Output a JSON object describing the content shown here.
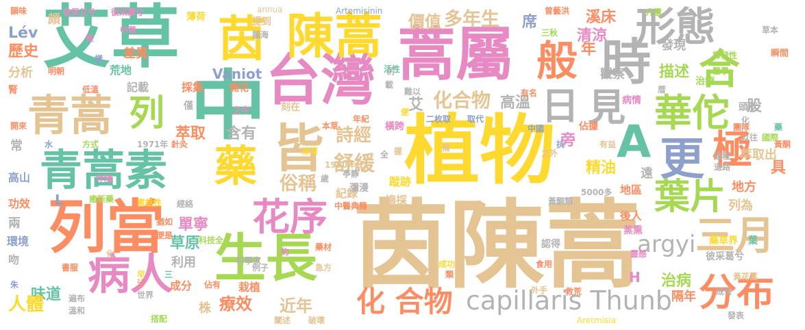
{
  "colors": {
    "green": "#66c2a5",
    "orange": "#fc8d62",
    "blue": "#8da0cb",
    "pink": "#e78ac3",
    "lime": "#a6d854",
    "yellow": "#ffd92f",
    "tan": "#e5c494",
    "gray": "#b3b3b3"
  },
  "words": [
    "艾草",
    "中",
    "台灣",
    "蒿屬",
    "茵陳蒿",
    "植物",
    "茵",
    "陳蒿",
    "形態",
    "時",
    "合",
    "般",
    "青蒿",
    "列",
    "日",
    "見",
    "皆",
    "華佗",
    "A",
    "更",
    "極",
    "青蒿素",
    "藥",
    "葉片",
    "三月",
    "列當",
    "生長",
    "病人",
    "花序",
    "分布",
    "capillaris Thunb",
    "化 合物",
    "argyi",
    "多年生",
    "價值",
    "溪床",
    "清涼",
    "描述",
    "觀察",
    "發現",
    "席",
    "年",
    "化合物",
    "高溫",
    "艾",
    "旁",
    "股",
    "詩經",
    "萃取",
    "含有",
    "精油",
    "遠",
    "舒緩",
    "俗稱",
    "具",
    "地方",
    "列為",
    "草原",
    "單寧",
    "利用",
    "治病",
    "隔年",
    "味道",
    "療效",
    "近年",
    "人體",
    "成分",
    "栽植",
    "Vaniot",
    "Lév",
    "歷史",
    "分析",
    "常",
    "高山",
    "功效",
    "兩",
    "環境",
    "吻",
    "記載",
    "採集",
    "僅",
    "開花",
    "荒地",
    "薄荷",
    "腦海",
    "提到",
    "紀錄",
    "蹤跡",
    "摘採",
    "後人",
    "地區",
    "H",
    "L",
    "萃取出",
    "頭狀",
    "治療",
    "瞬間",
    "差異",
    "彼采艾兮",
    "彼采蕭兮",
    "韻味",
    "頗",
    "明朝",
    "腎",
    "低溫",
    "開來",
    "水",
    "方式",
    "1971年",
    "針灸",
    "之中",
    "刻在",
    "本草",
    "年紀",
    "二枚取",
    "取代",
    "橫跨",
    "中國",
    "佔據",
    "抗",
    "以往",
    "黃酮",
    "過程",
    "道路",
    "有益",
    "藥草界",
    "葉",
    "彼采葛兮",
    "黃花蒿",
    "Aretmisia",
    "Artemisinin",
    "annua",
    "升遺",
    "草本",
    "曾藝洪",
    "三秋",
    "揮發性",
    "醫學",
    "有名",
    "病情",
    "蒸熏",
    "瀰漫",
    "中醫典籍",
    "5000多",
    "黃酮類",
    "靈感",
    "認得",
    "食用",
    "外手",
    "救荒",
    "成份",
    "癒新藥",
    "伴隨",
    "素話性",
    "猶如",
    "經絡",
    "科技全",
    "科學家",
    "便是",
    "約",
    "藥材",
    "例子",
    "急方",
    "成功",
    "類",
    "書服",
    "化",
    "遍布",
    "溫和",
    "世界",
    "早",
    "三",
    "汁",
    "搭配",
    "闡述",
    "破壞",
    "株",
    "佔有",
    "發表",
    "朱",
    "1960年代",
    "亭靜",
    "歲",
    "深深",
    "活性",
    "長",
    "中華",
    "樣",
    "肘",
    "載",
    "難以",
    "全",
    "握",
    "便",
    "備",
    "之外",
    "厝",
    "國際",
    "藥",
    "團隊",
    "化"
  ]
}
